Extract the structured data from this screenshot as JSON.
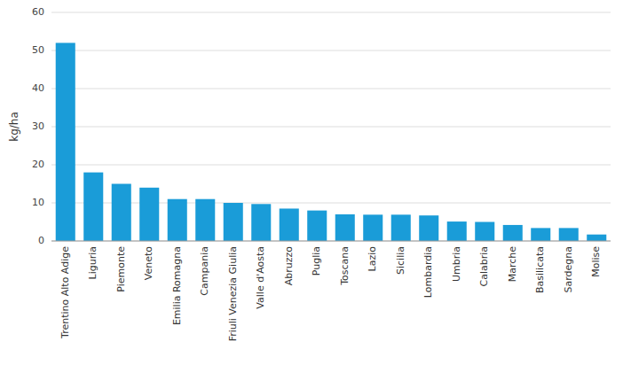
{
  "chart_data": {
    "type": "bar",
    "categories": [
      "Trentino Alto Adige",
      "Liguria",
      "Piemonte",
      "Veneto",
      "Emilia Romagna",
      "Campania",
      "Friuli Venezia Giulia",
      "Valle d'Aosta",
      "Abruzzo",
      "Puglia",
      "Toscana",
      "Lazio",
      "Sicilia",
      "Lombardia",
      "Umbria",
      "Calabria",
      "Marche",
      "Basilicata",
      "Sardegna",
      "Molise"
    ],
    "values": [
      52.0,
      18.0,
      15.0,
      14.0,
      11.0,
      11.0,
      10.0,
      9.7,
      8.5,
      8.0,
      7.0,
      6.9,
      6.9,
      6.7,
      5.1,
      5.0,
      4.2,
      3.4,
      3.4,
      1.7
    ],
    "color": "#1a9cd8",
    "ylabel": "kg/ha",
    "ylim": [
      0,
      60
    ],
    "yticks": [
      0,
      10,
      20,
      30,
      40,
      50,
      60
    ],
    "grid": true
  }
}
